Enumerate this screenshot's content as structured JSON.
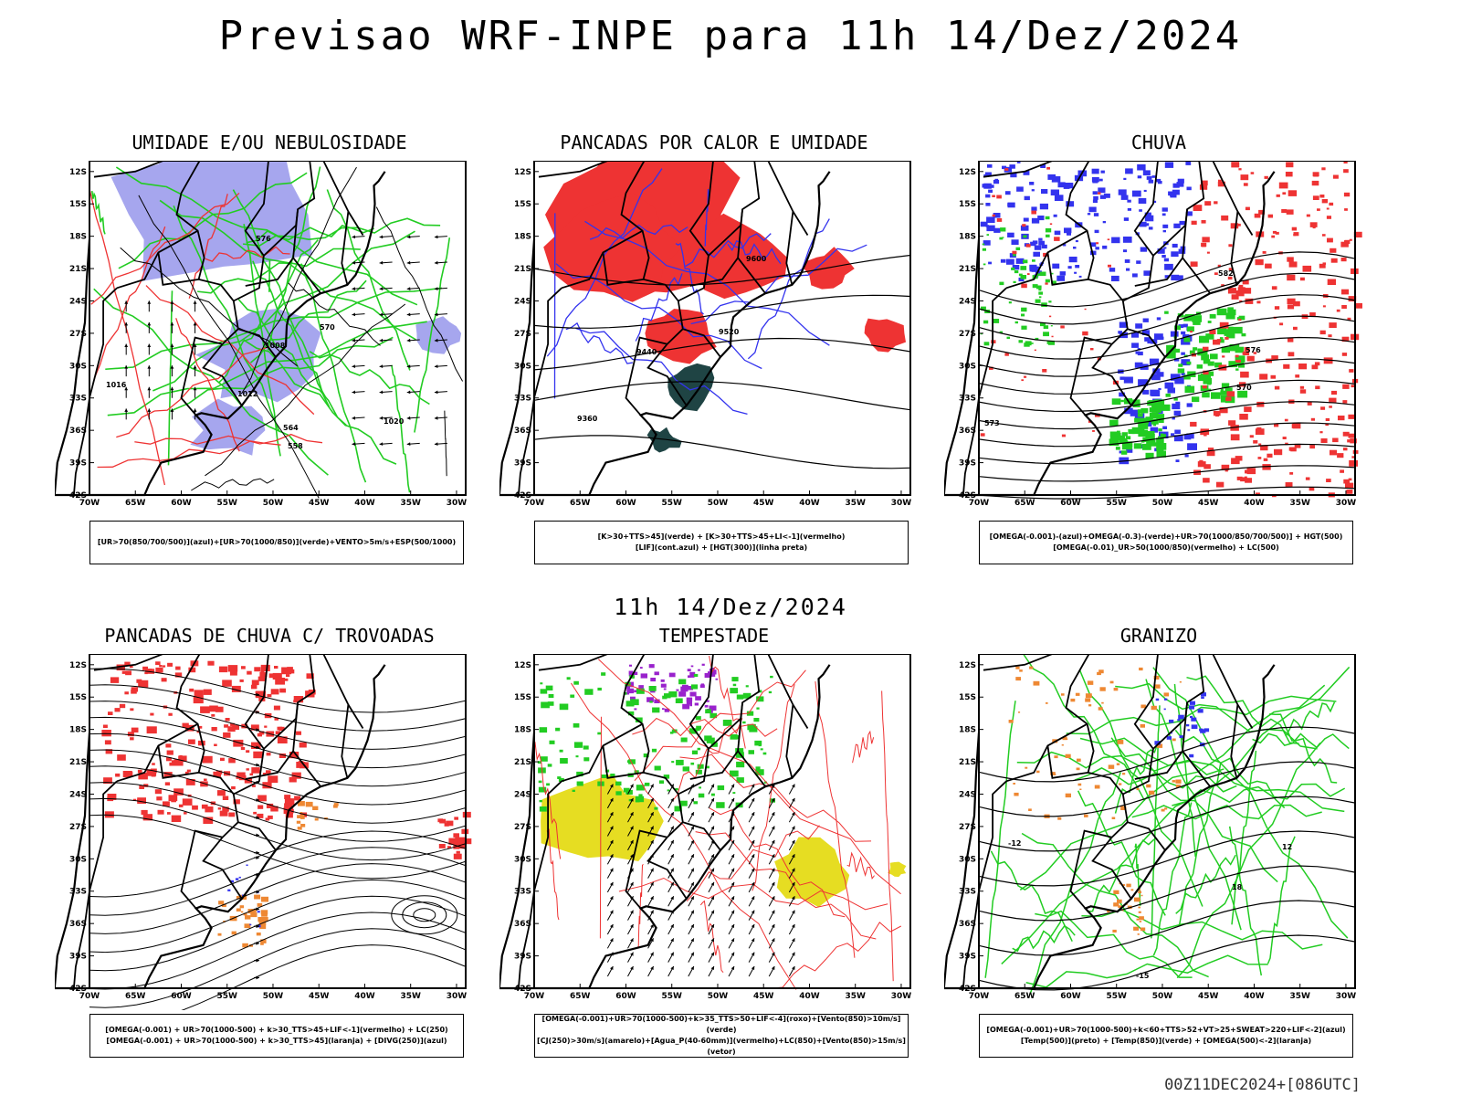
{
  "header": {
    "title": "Previsao WRF-INPE  para 11h 14/Dez/2024",
    "mid_time": "11h 14/Dez/2024",
    "run_info": "00Z11DEC2024+[086UTC]"
  },
  "axes": {
    "lat_labels": [
      "12S",
      "15S",
      "18S",
      "21S",
      "24S",
      "27S",
      "30S",
      "33S",
      "36S",
      "39S",
      "42S"
    ],
    "lon_labels": [
      "70W",
      "65W",
      "60W",
      "55W",
      "50W",
      "45W",
      "40W",
      "35W",
      "30W"
    ]
  },
  "colors": {
    "blue": "#3333ee",
    "blue_fill": "#a6a6ee",
    "green": "#22cc22",
    "red": "#ee3333",
    "orange": "#ee8833",
    "yellow": "#e6dd22",
    "purple": "#9922cc",
    "dark_teal": "#1f4444"
  },
  "panels": [
    {
      "id": "umidade",
      "title": "UMIDADE E/OU NEBULOSIDADE",
      "legend": [
        "[UR>70(850/700/500)](azul)+[UR>70(1000/850)](verde)+VENTO>5m/s+ESP(500/1000)"
      ],
      "contour_labels": [
        "1012",
        "1008",
        "1016",
        "1020",
        "570",
        "576",
        "564",
        "558"
      ]
    },
    {
      "id": "pancadas-calor",
      "title": "PANCADAS POR CALOR E UMIDADE",
      "legend": [
        "[K>30+TTS>45](verde) + [K>30+TTS>45+LI<-1](vermelho)",
        "[LIF](cont.azul) + [HGT(300)](linha preta)"
      ],
      "contour_labels": [
        "9600",
        "9520",
        "9440",
        "9360"
      ]
    },
    {
      "id": "chuva",
      "title": "CHUVA",
      "legend": [
        "[OMEGA(-0.001)-(azul)+OMEGA(-0.3)-(verde)+UR>70(1000/850/700/500)] + HGT(500)",
        "[OMEGA(-0.01)_UR>50(1000/850)(vermelho) + LC(500)"
      ],
      "contour_labels": [
        "582",
        "576",
        "573",
        "570"
      ]
    },
    {
      "id": "trovoadas",
      "title": "PANCADAS DE CHUVA C/ TROVOADAS",
      "legend": [
        "[OMEGA(-0.001) + UR>70(1000-500) + k>30_TTS>45+LIF<-1](vermelho) + LC(250)",
        "[OMEGA(-0.001) + UR>70(1000-500) + k>30_TTS>45](laranja) + [DIVG(250)](azul)"
      ],
      "contour_labels": []
    },
    {
      "id": "tempestade",
      "title": "TEMPESTADE",
      "legend": [
        "[OMEGA(-0.001)+UR>70(1000-500)+k>35_TTS>50+LIF<-4](roxo)+[Vento(850)>10m/s](verde)",
        "[CJ(250)>30m/s](amarelo)+[Agua_P(40-60mm)](vermelho)+LC(850)+[Vento(850)>15m/s](vetor)"
      ],
      "contour_labels": []
    },
    {
      "id": "granizo",
      "title": "GRANIZO",
      "legend": [
        "[OMEGA(-0.001)+UR>70(1000-500)+k<60+TTS>52+VT>25+SWEAT>220+LIF<-2](azul)",
        "[Temp(500)](preto) + [Temp(850)](verde) + [OMEGA(500)<-2](laranja)"
      ],
      "contour_labels": [
        "-12",
        "-15",
        "12",
        "18"
      ]
    }
  ]
}
